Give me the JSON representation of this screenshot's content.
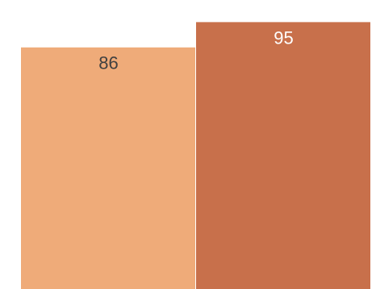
{
  "chart_data": {
    "type": "bar",
    "categories": [
      "",
      ""
    ],
    "values": [
      86,
      95
    ],
    "data_labels": [
      "86",
      "95"
    ],
    "colors": [
      "#EFAB79",
      "#C8704B"
    ],
    "label_colors": [
      "#404040",
      "#ffffff"
    ],
    "ylim": [
      0,
      100
    ],
    "grid": false,
    "legend": "none",
    "title": "",
    "xlabel": "",
    "ylabel": ""
  }
}
